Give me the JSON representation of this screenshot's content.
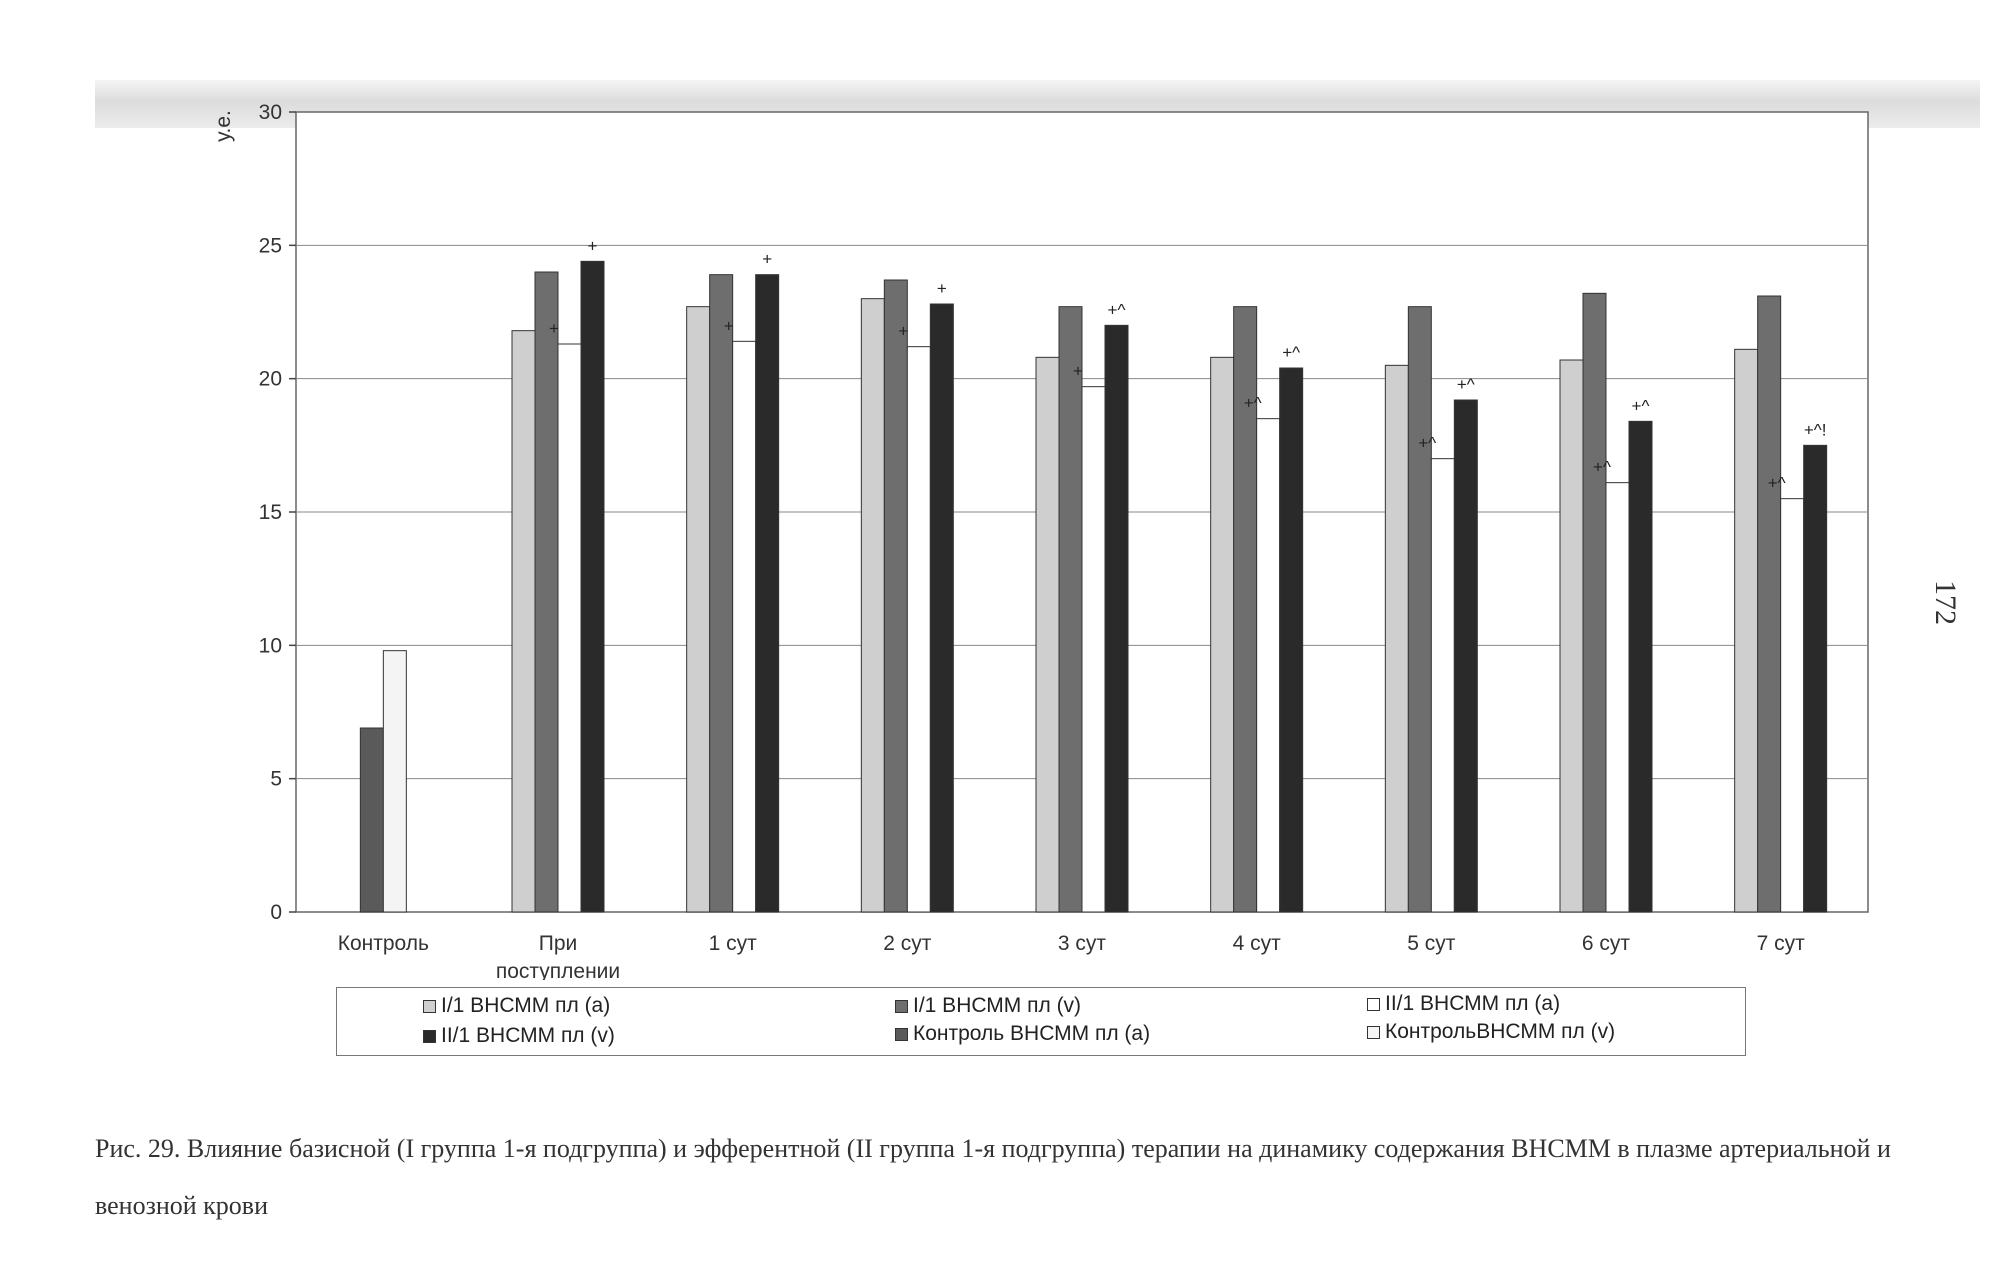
{
  "chart_data": {
    "type": "bar",
    "title": "",
    "xlabel": "",
    "ylabel": "у.е.",
    "ylim": [
      0,
      30
    ],
    "yticks": [
      0,
      5,
      10,
      15,
      20,
      25,
      30
    ],
    "grid": true,
    "categories": [
      "Контроль",
      "При поступлении",
      "1 сут",
      "2 сут",
      "3 сут",
      "4 сут",
      "5 сут",
      "6 сут",
      "7 сут"
    ],
    "category_labels": [
      [
        "Контроль"
      ],
      [
        "При",
        "поступлении"
      ],
      [
        "1 сут"
      ],
      [
        "2 сут"
      ],
      [
        "3 сут"
      ],
      [
        "4 сут"
      ],
      [
        "5 сут"
      ],
      [
        "6 сут"
      ],
      [
        "7 сут"
      ]
    ],
    "series": [
      {
        "name": "I/1 ВНСММ пл (a)",
        "color": "#cfcfcf",
        "values": [
          null,
          21.8,
          22.7,
          23.0,
          20.8,
          20.8,
          20.5,
          20.7,
          21.1
        ]
      },
      {
        "name": "I/1 ВНСММ пл (v)",
        "color": "#6e6e6e",
        "values": [
          null,
          24.0,
          23.9,
          23.7,
          22.7,
          22.7,
          22.7,
          23.2,
          23.1
        ]
      },
      {
        "name": "II/1 ВНСММ пл (a)",
        "color": "#ffffff",
        "values": [
          null,
          21.3,
          21.4,
          21.2,
          19.7,
          18.5,
          17.0,
          16.1,
          15.5
        ]
      },
      {
        "name": "II/1 ВНСММ пл (v)",
        "color": "#2a2a2a",
        "values": [
          null,
          24.4,
          23.9,
          22.8,
          22.0,
          20.4,
          19.2,
          18.4,
          17.5
        ]
      },
      {
        "name": "Контроль ВНСММ пл (a)",
        "color": "#5a5a5a",
        "values": [
          6.9,
          null,
          null,
          null,
          null,
          null,
          null,
          null,
          null
        ]
      },
      {
        "name": "КонтрольВНСММ пл (v)",
        "color": "#f4f4f4",
        "values": [
          9.8,
          null,
          null,
          null,
          null,
          null,
          null,
          null,
          null
        ]
      }
    ],
    "annotations": [
      {
        "category": 1,
        "series": 2,
        "text": "+"
      },
      {
        "category": 1,
        "series": 3,
        "text": "+"
      },
      {
        "category": 2,
        "series": 2,
        "text": "+"
      },
      {
        "category": 2,
        "series": 3,
        "text": "+"
      },
      {
        "category": 3,
        "series": 2,
        "text": "+"
      },
      {
        "category": 3,
        "series": 3,
        "text": "+"
      },
      {
        "category": 4,
        "series": 2,
        "text": "+"
      },
      {
        "category": 4,
        "series": 3,
        "text": "+^"
      },
      {
        "category": 5,
        "series": 2,
        "text": "+^"
      },
      {
        "category": 5,
        "series": 3,
        "text": "+^"
      },
      {
        "category": 6,
        "series": 2,
        "text": "+^"
      },
      {
        "category": 6,
        "series": 3,
        "text": "+^"
      },
      {
        "category": 7,
        "series": 2,
        "text": "+^"
      },
      {
        "category": 7,
        "series": 3,
        "text": "+^"
      },
      {
        "category": 8,
        "series": 2,
        "text": "+^"
      },
      {
        "category": 8,
        "series": 3,
        "text": "+^!"
      }
    ]
  },
  "caption": "Рис. 29. Влияние базисной (I группа 1-я подгруппа) и эфферентной (II группа 1-я подгруппа) терапии на динамику содержания ВНСММ в плазме артериальной и венозной крови",
  "page_number": "172"
}
